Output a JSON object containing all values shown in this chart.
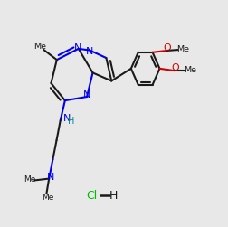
{
  "bg_color": "#e8e8e8",
  "bond_color": "#1a1a1a",
  "N_color": "#0000ee",
  "O_color": "#cc0000",
  "H_color": "#008888",
  "Cl_color": "#00bb00",
  "lw": 1.5
}
